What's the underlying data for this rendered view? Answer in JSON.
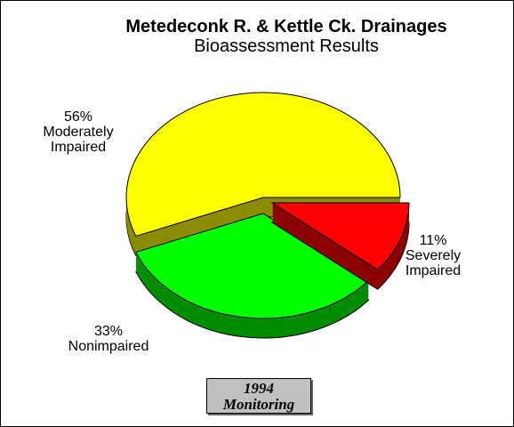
{
  "chart_data": {
    "type": "pie",
    "title": "Metedeconk R. & Kettle Ck. Drainages",
    "subtitle": "Bioassessment Results",
    "categories": [
      "Moderately Impaired",
      "Nonimpaired",
      "Severely Impaired"
    ],
    "values": [
      56,
      33,
      11
    ],
    "value_labels": [
      "56%",
      "33%",
      "11%"
    ],
    "colors": [
      "#ffff00",
      "#00ff00",
      "#ff0000"
    ],
    "annotation": [
      "1994",
      "Monitoring"
    ]
  }
}
